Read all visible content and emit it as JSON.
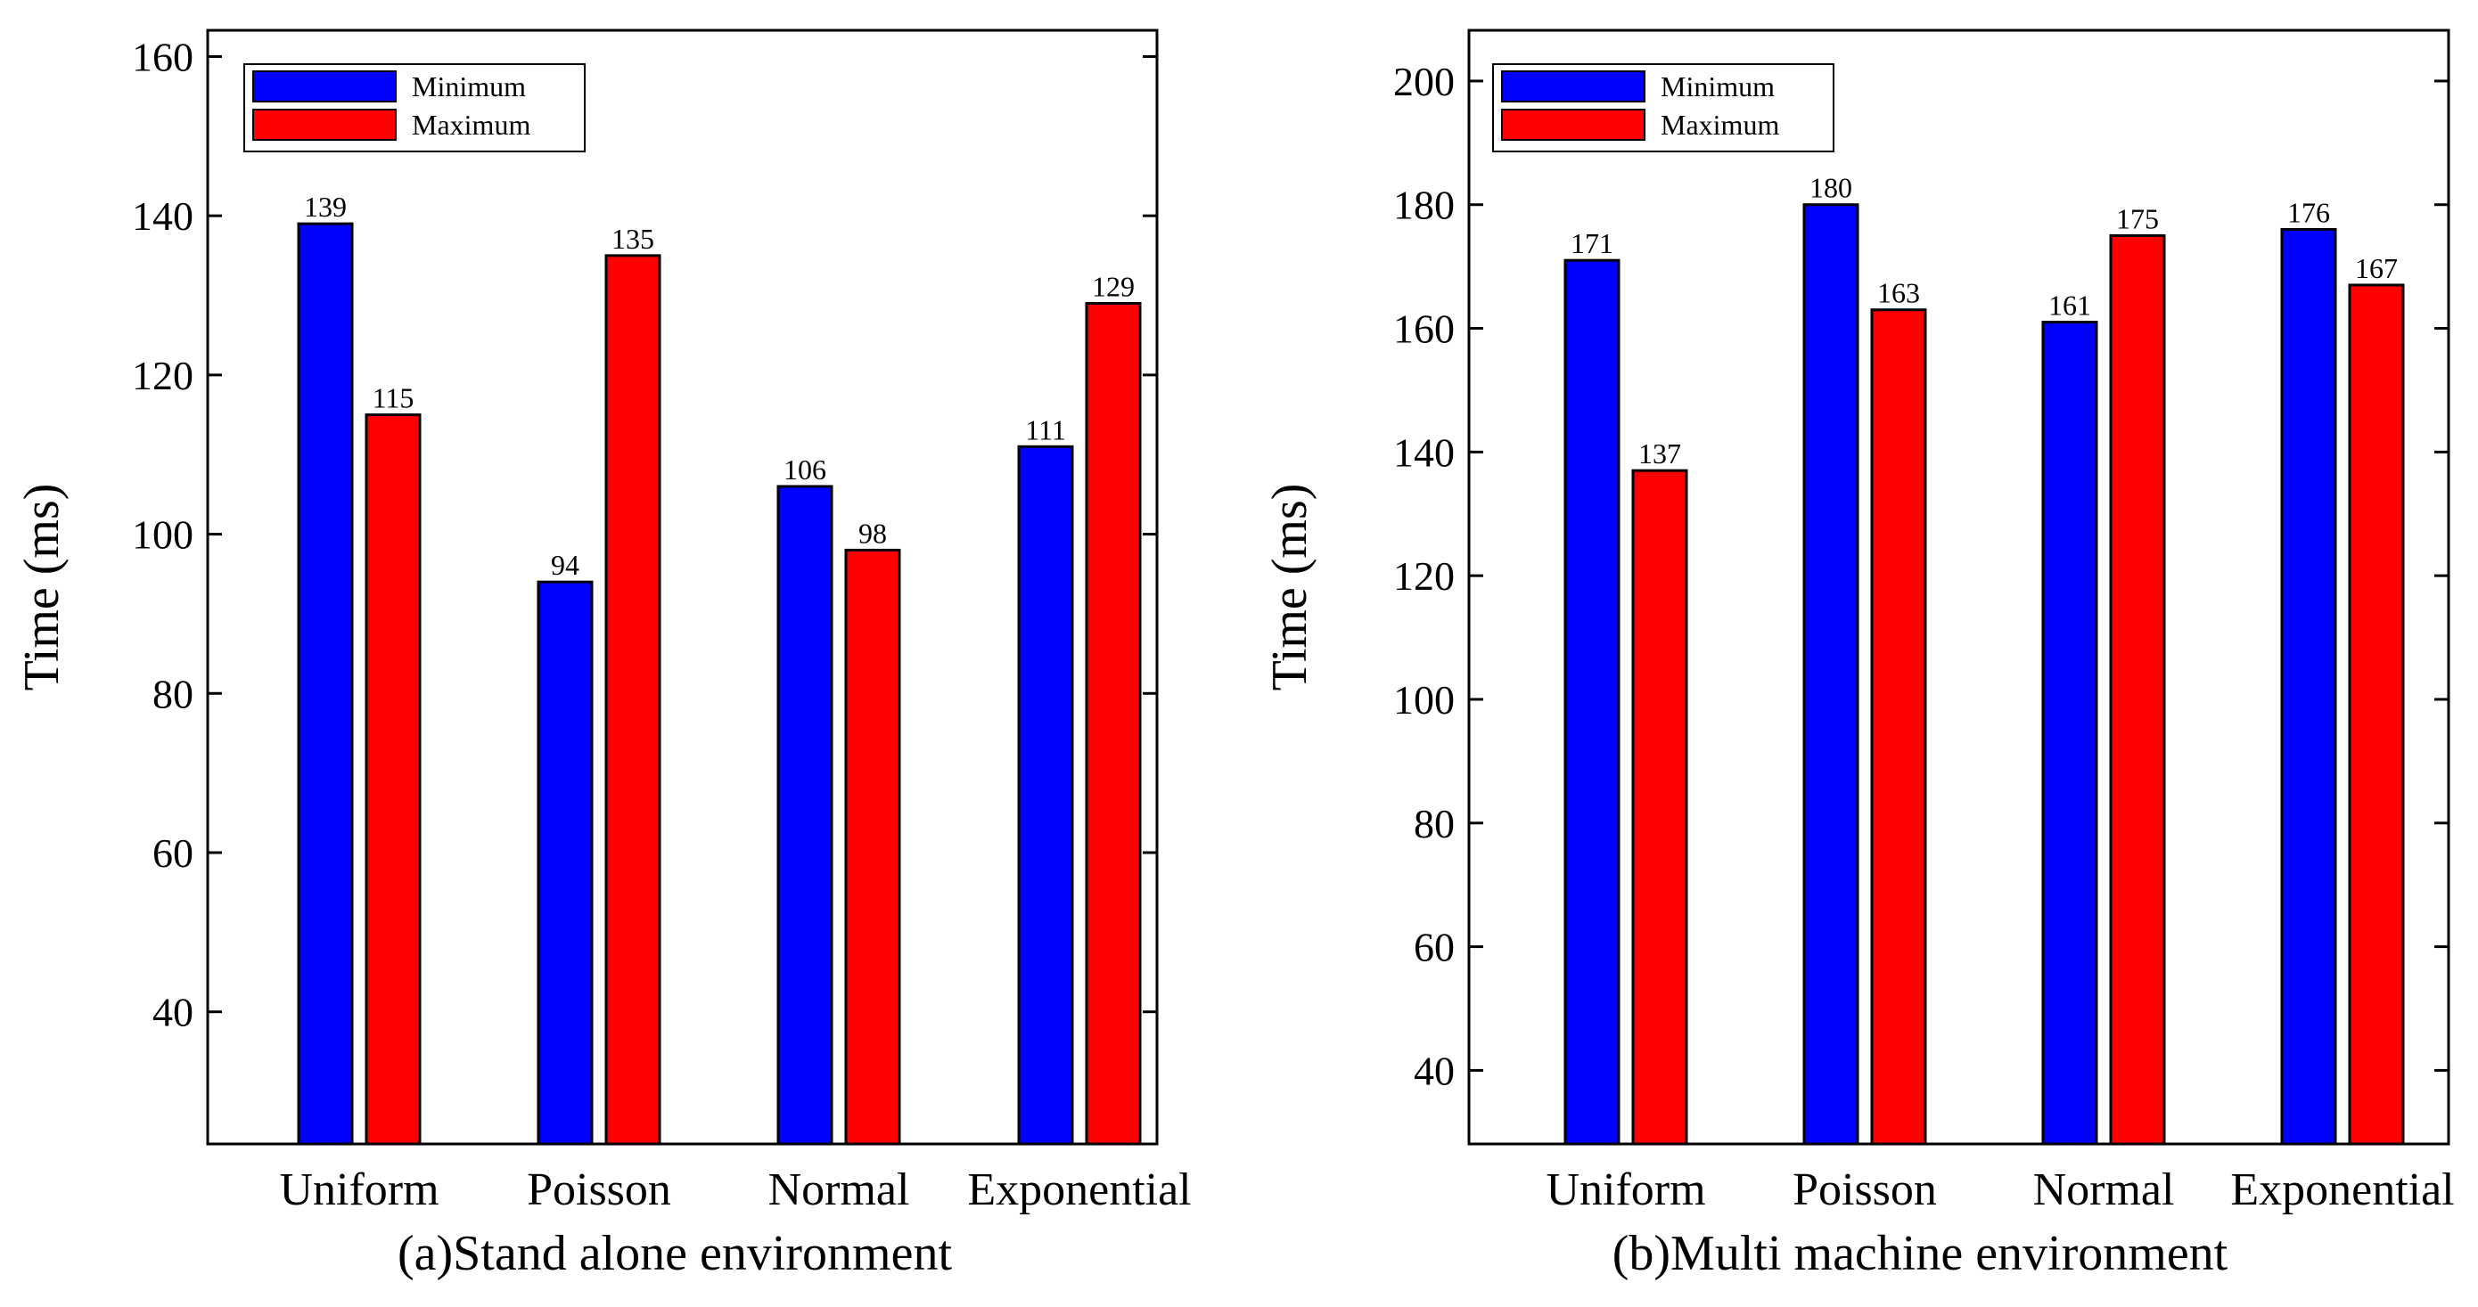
{
  "chart_data": [
    {
      "type": "bar",
      "caption": "(a)Stand alone environment",
      "ylabel": "Time (ms)",
      "ylim": [
        23.4,
        163.3
      ],
      "yticks": [
        40,
        60,
        80,
        100,
        120,
        140,
        160
      ],
      "categories": [
        "Uniform",
        "Poisson",
        "Normal",
        "Exponential"
      ],
      "series": [
        {
          "name": "Minimum",
          "color": "#0000ff",
          "values": [
            139,
            94,
            106,
            111
          ]
        },
        {
          "name": "Maximum",
          "color": "#ff0000",
          "values": [
            115,
            135,
            98,
            129
          ]
        }
      ],
      "legend": "top-left"
    },
    {
      "type": "bar",
      "caption": "(b)Multi machine environment",
      "ylabel": "Time (ms)",
      "ylim": [
        28.1,
        208.2
      ],
      "yticks": [
        40,
        60,
        80,
        100,
        120,
        140,
        160,
        180,
        200
      ],
      "categories": [
        "Uniform",
        "Poisson",
        "Normal",
        "Exponential"
      ],
      "series": [
        {
          "name": "Minimum",
          "color": "#0000ff",
          "values": [
            171,
            180,
            161,
            176
          ]
        },
        {
          "name": "Maximum",
          "color": "#ff0000",
          "values": [
            137,
            163,
            175,
            167
          ]
        }
      ],
      "legend": "top-left"
    }
  ]
}
